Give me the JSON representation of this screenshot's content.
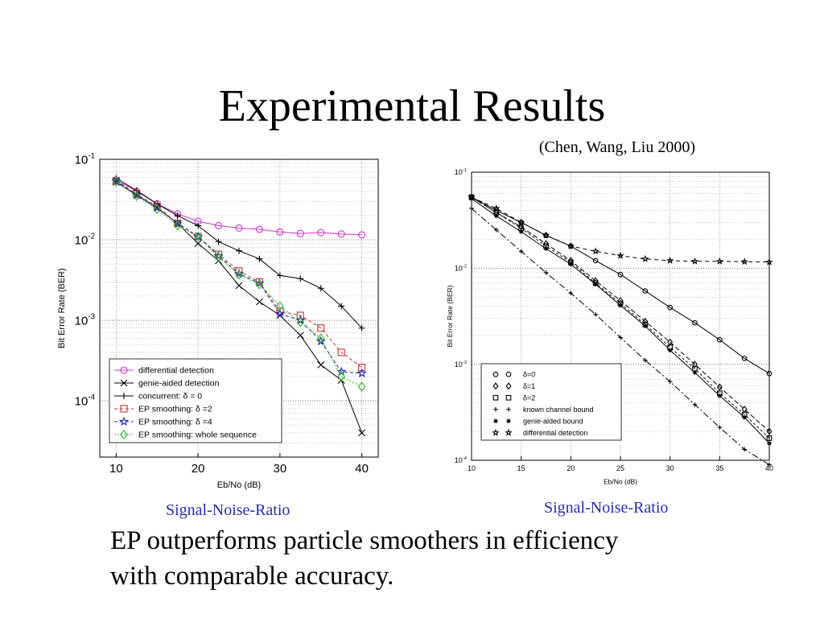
{
  "slide": {
    "title": "Experimental Results",
    "citation": "(Chen, Wang, Liu 2000)",
    "caption_left": "Signal-Noise-Ratio",
    "caption_right": "Signal-Noise-Ratio",
    "body_line1": "EP outperforms particle smoothers in efficiency",
    "body_line2": "with comparable accuracy."
  },
  "chart_data": [
    {
      "type": "line",
      "title": "",
      "xlabel": "E_b/N_o (dB)",
      "ylabel": "Bit Error Rate (BER)",
      "xlim": [
        8,
        42
      ],
      "ylim": [
        2e-05,
        0.1
      ],
      "yscale": "log",
      "xticks": [
        10,
        20,
        30,
        40
      ],
      "ytick_labels": [
        "10^-1",
        "10^-2",
        "10^-3",
        "10^-4"
      ],
      "grid": true,
      "legend_position": "bottom-left",
      "series": [
        {
          "name": "differential detection",
          "color": "#cc33cc",
          "marker": "circle",
          "dash": "",
          "x": [
            10,
            12.5,
            15,
            17.5,
            20,
            22.5,
            25,
            27.5,
            30,
            32.5,
            35,
            37.5,
            40
          ],
          "y": [
            0.055,
            0.04,
            0.028,
            0.021,
            0.017,
            0.015,
            0.014,
            0.0135,
            0.0125,
            0.012,
            0.0123,
            0.0118,
            0.0115
          ]
        },
        {
          "name": "genie-aided detection",
          "color": "#000000",
          "marker": "x",
          "dash": "",
          "x": [
            10,
            12.5,
            15,
            17.5,
            20,
            22.5,
            25,
            27.5,
            30,
            32.5,
            35,
            37.5,
            40
          ],
          "y": [
            0.052,
            0.036,
            0.025,
            0.016,
            0.009,
            0.0055,
            0.0027,
            0.0017,
            0.00115,
            0.00065,
            0.00028,
            0.00018,
            4e-05
          ]
        },
        {
          "name": "concurrent: δ = 0",
          "color": "#000000",
          "marker": "plus",
          "dash": "",
          "x": [
            10,
            12.5,
            15,
            17.5,
            20,
            22.5,
            25,
            27.5,
            30,
            32.5,
            35,
            37.5,
            40
          ],
          "y": [
            0.058,
            0.041,
            0.028,
            0.02,
            0.015,
            0.0095,
            0.0073,
            0.0058,
            0.0036,
            0.0033,
            0.0025,
            0.0015,
            0.0008
          ]
        },
        {
          "name": "EP smoothing: δ =2",
          "color": "#cc3333",
          "marker": "square",
          "dash": "4,3",
          "x": [
            10,
            12.5,
            15,
            17.5,
            20,
            22.5,
            25,
            27.5,
            30,
            32.5,
            35,
            37.5,
            40
          ],
          "y": [
            0.054,
            0.037,
            0.026,
            0.016,
            0.011,
            0.0066,
            0.0041,
            0.003,
            0.0013,
            0.00115,
            0.0008,
            0.0004,
            0.00026
          ]
        },
        {
          "name": "EP smoothing: δ =4",
          "color": "#2222aa",
          "marker": "star",
          "dash": "4,3",
          "x": [
            10,
            12.5,
            15,
            17.5,
            20,
            22.5,
            25,
            27.5,
            30,
            32.5,
            35,
            37.5,
            40
          ],
          "y": [
            0.054,
            0.036,
            0.025,
            0.016,
            0.011,
            0.0063,
            0.0038,
            0.0029,
            0.0012,
            0.001,
            0.00055,
            0.00023,
            0.00022
          ]
        },
        {
          "name": "EP smoothing: whole sequence",
          "color": "#22bb22",
          "marker": "diamond",
          "dash": "2,2",
          "x": [
            10,
            12.5,
            15,
            17.5,
            20,
            22.5,
            25,
            27.5,
            30,
            32.5,
            35,
            37.5,
            40
          ],
          "y": [
            0.053,
            0.035,
            0.024,
            0.015,
            0.011,
            0.0061,
            0.0037,
            0.0028,
            0.0015,
            0.00095,
            0.0006,
            0.0002,
            0.00015
          ]
        }
      ]
    },
    {
      "type": "line",
      "title": "",
      "xlabel": "Eb/No (dB)",
      "ylabel": "Bit Error Rate (BER)",
      "xlim": [
        10,
        40
      ],
      "ylim": [
        0.0001,
        0.1
      ],
      "yscale": "log",
      "xticks": [
        10,
        15,
        20,
        25,
        30,
        35,
        40
      ],
      "ytick_labels": [
        "10^-1",
        "10^-2",
        "10^-3",
        "10^-4"
      ],
      "grid": true,
      "legend_position": "bottom-left",
      "series": [
        {
          "name": "δ=0",
          "color": "#000000",
          "marker": "circle",
          "dash": "",
          "x": [
            10,
            12.5,
            15,
            17.5,
            20,
            22.5,
            25,
            27.5,
            30,
            32.5,
            35,
            37.5,
            40
          ],
          "y": [
            0.055,
            0.04,
            0.03,
            0.022,
            0.017,
            0.012,
            0.0086,
            0.0058,
            0.0039,
            0.0027,
            0.0018,
            0.00115,
            0.0008
          ]
        },
        {
          "name": "δ=1",
          "color": "#000000",
          "marker": "diamond",
          "dash": "6,3",
          "x": [
            10,
            12.5,
            15,
            17.5,
            20,
            22.5,
            25,
            27.5,
            30,
            32.5,
            35,
            37.5,
            40
          ],
          "y": [
            0.055,
            0.038,
            0.027,
            0.018,
            0.012,
            0.0074,
            0.0046,
            0.0028,
            0.0017,
            0.001,
            0.00058,
            0.00034,
            0.0002
          ]
        },
        {
          "name": "δ=2",
          "color": "#000000",
          "marker": "square",
          "dash": "3,3",
          "x": [
            10,
            12.5,
            15,
            17.5,
            20,
            22.5,
            25,
            27.5,
            30,
            32.5,
            35,
            37.5,
            40
          ],
          "y": [
            0.055,
            0.038,
            0.026,
            0.017,
            0.0115,
            0.007,
            0.0043,
            0.0026,
            0.0015,
            0.0009,
            0.0005,
            0.0003,
            0.00017
          ]
        },
        {
          "name": "known channel bound",
          "color": "#000000",
          "marker": "plus",
          "dash": "8,3,2,3",
          "x": [
            10,
            12.5,
            15,
            17.5,
            20,
            22.5,
            25,
            27.5,
            30,
            32.5,
            35,
            37.5,
            40
          ],
          "y": [
            0.042,
            0.025,
            0.015,
            0.009,
            0.0055,
            0.0033,
            0.0019,
            0.0011,
            0.00066,
            0.00038,
            0.00022,
            0.00013,
            9e-05
          ]
        },
        {
          "name": "genie-aided bound",
          "color": "#000000",
          "marker": "asterisk",
          "dash": "",
          "x": [
            10,
            12.5,
            15,
            17.5,
            20,
            22.5,
            25,
            27.5,
            30,
            32.5,
            35,
            37.5,
            40
          ],
          "y": [
            0.053,
            0.035,
            0.024,
            0.016,
            0.011,
            0.0068,
            0.0041,
            0.0025,
            0.0014,
            0.00082,
            0.00047,
            0.00028,
            0.00015
          ]
        },
        {
          "name": "differential detection",
          "color": "#000000",
          "marker": "star",
          "dash": "5,4",
          "x": [
            10,
            12.5,
            15,
            17.5,
            20,
            22.5,
            25,
            27.5,
            30,
            32.5,
            35,
            37.5,
            40
          ],
          "y": [
            0.055,
            0.042,
            0.03,
            0.022,
            0.017,
            0.015,
            0.0135,
            0.0125,
            0.012,
            0.0118,
            0.0118,
            0.0117,
            0.0116
          ]
        }
      ]
    }
  ]
}
